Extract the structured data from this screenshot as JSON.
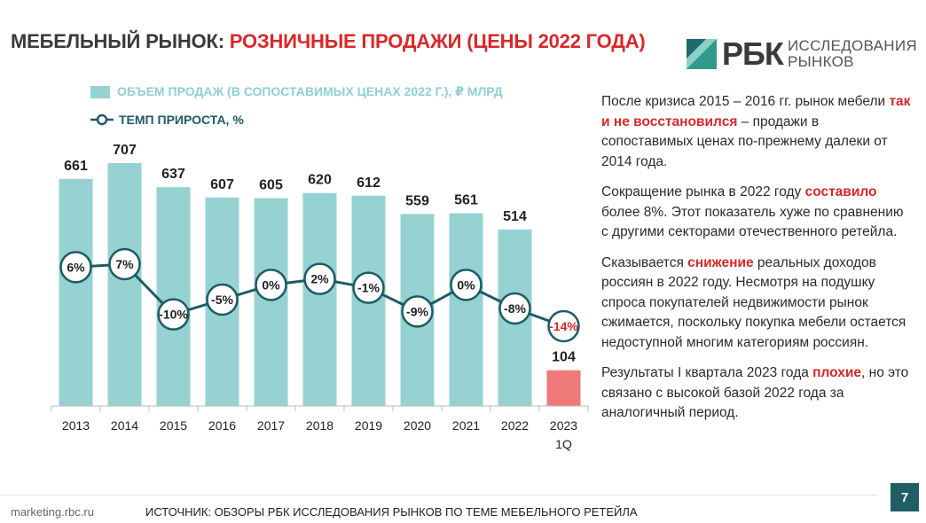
{
  "title": {
    "part1": "МЕБЕЛЬНЫЙ РЫНОК: ",
    "part2": "РОЗНИЧНЫЕ ПРОДАЖИ (ЦЕНЫ 2022 ГОДА)"
  },
  "logo": {
    "brand": "РБК",
    "line1": "ИССЛЕДОВАНИЯ",
    "line2": "РЫНКОВ"
  },
  "legend": {
    "bars": "ОБЪЕМ ПРОДАЖ (В СОПОСТАВИМЫХ ЦЕНАХ 2022 Г.), ₽ МЛРД",
    "line": "ТЕМП ПРИРОСТА, %"
  },
  "chart_data": {
    "type": "bar",
    "categories": [
      "2013",
      "2014",
      "2015",
      "2016",
      "2017",
      "2018",
      "2019",
      "2020",
      "2021",
      "2022",
      "2023\n1Q"
    ],
    "series": [
      {
        "name": "ОБЪЕМ ПРОДАЖ (В СОПОСТАВИМЫХ ЦЕНАХ 2022 Г.), ₽ МЛРД",
        "values": [
          661,
          707,
          637,
          607,
          605,
          620,
          612,
          559,
          561,
          514,
          104
        ]
      },
      {
        "name": "ТЕМП ПРИРОСТА, %",
        "type": "line",
        "values": [
          6,
          7,
          -10,
          -5,
          0,
          2,
          -1,
          -9,
          0,
          -8,
          -14
        ],
        "labels": [
          "6%",
          "7%",
          "-10%",
          "-5%",
          "0%",
          "2%",
          "-1%",
          "-9%",
          "0%",
          "-8%",
          "-14%"
        ]
      }
    ],
    "highlight_index": 10,
    "colors": {
      "bar": "#96d2d2",
      "bar_highlight": "#f07a7a",
      "line": "#1f5a66",
      "negative_label": "#d8282a"
    },
    "grid": false,
    "legend_position": "top-left"
  },
  "text": {
    "p1": {
      "a": "После кризиса 2015 – 2016 гг. рынок мебели ",
      "hl": "так и не восстановился",
      "b": " – продажи в сопоставимых ценах по-прежнему далеки от 2014 года."
    },
    "p2": {
      "a": "Сокращение рынка в 2022 году ",
      "hl": "составило",
      "b": " более 8%. Этот показатель хуже по сравнению с другими секторами отечественного ретейла."
    },
    "p3": {
      "a": "Сказывается ",
      "hl": "снижение",
      "b": " реальных доходов россиян в 2022 году. Несмотря на подушку спроса покупателей недвижимости рынок сжимается, поскольку покупка мебели остается недоступной многим категориям россиян."
    },
    "p4": {
      "a": "Результаты I квартала 2023 года ",
      "hl": "плохие",
      "b": ", но это связано с высокой базой 2022 года за аналогичный период."
    }
  },
  "footer": {
    "site": "marketing.rbc.ru",
    "source": "ИСТОЧНИК:  ОБЗОРЫ РБК ИССЛЕДОВАНИЯ РЫНКОВ ПО ТЕМЕ МЕБЕЛЬНОГО РЕТЕЙЛА",
    "page": "7"
  }
}
